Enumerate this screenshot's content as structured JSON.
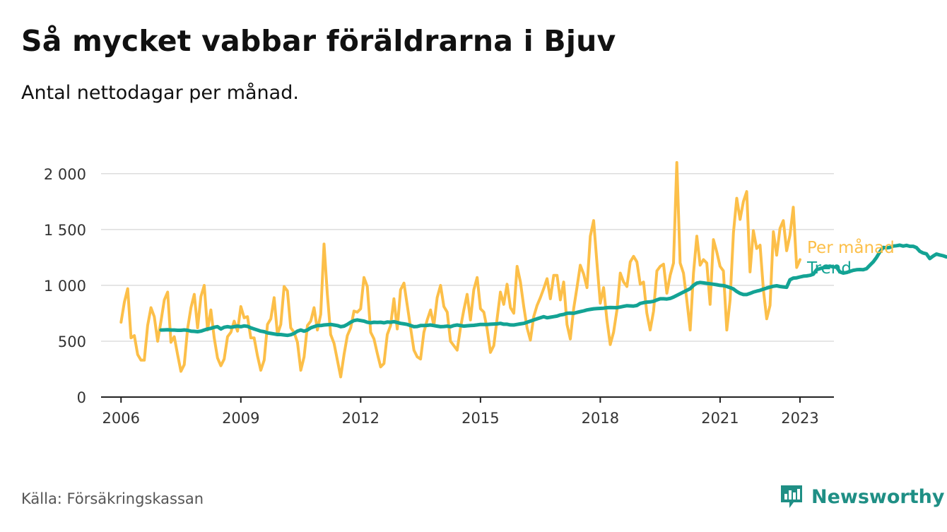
{
  "title": "Så mycket vabbar föräldrarna i Bjuv",
  "subtitle": "Antal nettodagar per månad.",
  "source": "Källa: Försäkringskassan",
  "brand": "Newsworthy",
  "colors": {
    "monthly": "#fcbf49",
    "trend": "#13a394",
    "grid": "#dddddd",
    "axis": "#222222",
    "brand": "#1f8f85"
  },
  "chart_data": {
    "type": "line",
    "xlabel": "",
    "ylabel": "",
    "ylim": [
      0,
      2100
    ],
    "xlim": [
      2005.5,
      2023.85
    ],
    "grid": true,
    "y_ticks": [
      0,
      500,
      1000,
      1500,
      2000
    ],
    "y_tick_labels": [
      "0",
      "500",
      "1 000",
      "1 500",
      "2 000"
    ],
    "x_ticks": [
      2006,
      2009,
      2012,
      2015,
      2018,
      2021,
      2023
    ],
    "x_tick_labels": [
      "2006",
      "2009",
      "2012",
      "2015",
      "2018",
      "2021",
      "2023"
    ],
    "series": [
      {
        "name": "Per månad",
        "color": "#fcbf49",
        "start": "2006-01",
        "values": [
          670,
          850,
          970,
          530,
          550,
          380,
          330,
          330,
          640,
          800,
          720,
          500,
          680,
          870,
          940,
          490,
          540,
          380,
          230,
          290,
          610,
          800,
          920,
          620,
          900,
          1000,
          600,
          780,
          530,
          350,
          280,
          340,
          540,
          580,
          680,
          590,
          810,
          710,
          720,
          530,
          530,
          370,
          240,
          330,
          650,
          700,
          890,
          560,
          650,
          990,
          950,
          620,
          580,
          490,
          240,
          360,
          640,
          680,
          800,
          600,
          740,
          1370,
          920,
          560,
          480,
          330,
          180,
          380,
          550,
          620,
          770,
          760,
          790,
          1070,
          990,
          580,
          520,
          390,
          270,
          300,
          560,
          640,
          880,
          610,
          960,
          1020,
          820,
          620,
          420,
          360,
          340,
          580,
          690,
          780,
          640,
          890,
          1000,
          810,
          760,
          500,
          460,
          420,
          620,
          780,
          920,
          690,
          960,
          1070,
          790,
          760,
          610,
          400,
          460,
          700,
          940,
          830,
          1010,
          800,
          750,
          1170,
          1030,
          810,
          620,
          510,
          720,
          820,
          890,
          970,
          1060,
          880,
          1090,
          1090,
          870,
          1030,
          650,
          520,
          790,
          980,
          1180,
          1100,
          980,
          1440,
          1580,
          1200,
          840,
          980,
          690,
          470,
          580,
          780,
          1110,
          1030,
          990,
          1210,
          1260,
          1210,
          1010,
          1030,
          750,
          600,
          770,
          1130,
          1170,
          1190,
          930,
          1090,
          1200,
          2100,
          1200,
          1110,
          870,
          600,
          1110,
          1440,
          1180,
          1230,
          1200,
          830,
          1410,
          1300,
          1170,
          1130,
          600,
          870,
          1470,
          1780,
          1590,
          1750,
          1840,
          1120,
          1490,
          1330,
          1360,
          960,
          700,
          820,
          1480,
          1270,
          1510,
          1580,
          1310,
          1450,
          1700,
          1160,
          1230
        ]
      },
      {
        "name": "Trend",
        "color": "#13a394",
        "start": "2007-01",
        "values": [
          600,
          601,
          602,
          600,
          600,
          598,
          598,
          601,
          598,
          590,
          588,
          585,
          590,
          600,
          610,
          615,
          625,
          630,
          610,
          625,
          630,
          625,
          630,
          635,
          630,
          637,
          633,
          620,
          610,
          600,
          590,
          585,
          575,
          570,
          565,
          560,
          560,
          556,
          552,
          558,
          570,
          590,
          600,
          590,
          600,
          620,
          630,
          640,
          640,
          645,
          648,
          650,
          645,
          640,
          630,
          635,
          650,
          670,
          685,
          690,
          685,
          680,
          670,
          665,
          670,
          668,
          670,
          665,
          672,
          670,
          675,
          668,
          660,
          655,
          650,
          640,
          630,
          632,
          640,
          640,
          642,
          645,
          640,
          635,
          630,
          632,
          635,
          630,
          640,
          645,
          640,
          635,
          638,
          640,
          642,
          646,
          650,
          650,
          650,
          652,
          654,
          655,
          660,
          652,
          652,
          646,
          645,
          650,
          655,
          660,
          670,
          680,
          690,
          700,
          710,
          720,
          710,
          715,
          720,
          725,
          735,
          740,
          750,
          752,
          750,
          758,
          765,
          772,
          780,
          785,
          790,
          792,
          794,
          796,
          800,
          802,
          801,
          800,
          806,
          812,
          818,
          816,
          815,
          820,
          838,
          845,
          850,
          852,
          858,
          870,
          880,
          880,
          878,
          883,
          895,
          910,
          925,
          940,
          955,
          970,
          1000,
          1020,
          1026,
          1022,
          1018,
          1014,
          1010,
          1006,
          1000,
          998,
          990,
          980,
          968,
          945,
          928,
          918,
          918,
          928,
          940,
          948,
          956,
          966,
          976,
          985,
          992,
          996,
          990,
          986,
          983,
          1050,
          1065,
          1068,
          1075,
          1082,
          1085,
          1090,
          1100,
          1140,
          1150,
          1158,
          1165,
          1172,
          1165,
          1162,
          1120,
          1110,
          1115,
          1125,
          1135,
          1140,
          1142,
          1140,
          1150,
          1180,
          1210,
          1250,
          1300,
          1340,
          1335,
          1340,
          1352,
          1355,
          1360,
          1352,
          1358,
          1350,
          1350,
          1338,
          1305,
          1290,
          1282,
          1240,
          1262,
          1280,
          1272,
          1265,
          1255
        ]
      }
    ],
    "series_labels": [
      "Per månad",
      "Trend"
    ]
  }
}
